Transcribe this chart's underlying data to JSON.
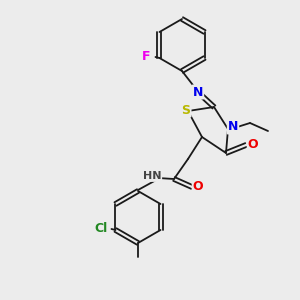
{
  "background_color": "#ececec",
  "bond_color": "#1a1a1a",
  "atom_colors": {
    "S": "#b8b800",
    "N": "#0000ee",
    "O": "#ee0000",
    "F": "#ee00ee",
    "Cl": "#228822",
    "C": "#1a1a1a",
    "H": "#444444"
  },
  "figsize": [
    3.0,
    3.0
  ],
  "dpi": 100
}
